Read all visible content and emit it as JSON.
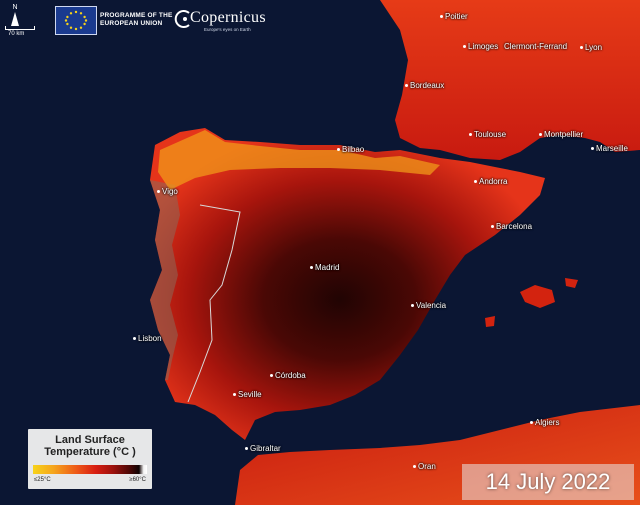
{
  "header": {
    "north_label": "N",
    "scale_label": "70 km",
    "eu_program_line1": "PROGRAMME OF THE",
    "eu_program_line2": "EUROPEAN UNION",
    "copernicus_logo": "Copernicus",
    "copernicus_tagline": "Europe's eyes on Earth"
  },
  "cities": {
    "poitier": "Poitier",
    "limoges": "Limoges",
    "clermont": "Clermont-Ferrand",
    "lyon": "Lyon",
    "bordeaux": "Bordeaux",
    "toulouse": "Toulouse",
    "montpellier": "Montpellier",
    "marseille": "Marseille",
    "bilbao": "Bilbao",
    "andorra": "Andorra",
    "vigo": "Vigo",
    "barcelona": "Barcelona",
    "madrid": "Madrid",
    "valencia": "Valencia",
    "lisbon": "Lisbon",
    "cordoba": "Córdoba",
    "seville": "Seville",
    "gibraltar": "Gibraltar",
    "algiers": "Algiers",
    "oran": "Oran"
  },
  "legend": {
    "title_line1": "Land Surface",
    "title_line2": "Temperature (°C )",
    "min_label": "≤25°C",
    "max_label": "≥60°C",
    "colors": [
      "#f7d31a",
      "#ee5a18",
      "#d81e12",
      "#4a0705",
      "#0f0303",
      "#ffffff"
    ]
  },
  "date_label": "14 July 2022",
  "colors": {
    "sea": "#0b1633",
    "hot": "#3d0705",
    "warm": "#d8200f",
    "cool": "#f2a41a"
  }
}
